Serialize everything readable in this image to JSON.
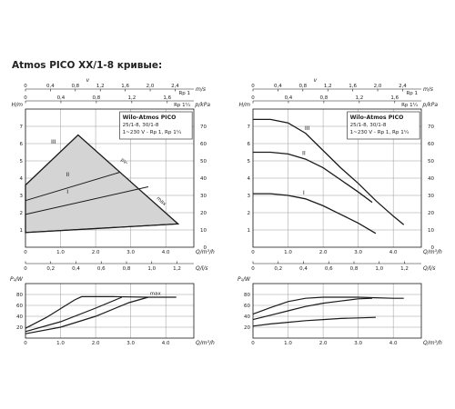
{
  "heading": "Atmos PICO XX/1-8 кривые:",
  "colors": {
    "line": "#1a1a1a",
    "grid": "#9a9a9a",
    "shade": "#d4d4d4"
  },
  "chart_data": [
    {
      "id": "left-head",
      "type": "area",
      "xlabel": "Q/m³/h",
      "ylabel": "H/m",
      "y2label": "p/kPa",
      "top_v_label": "v",
      "top_v_unit": "m/s",
      "top_rp_unit": "Rp 1",
      "top_rp2_unit": "Rp 1¼",
      "xlim": [
        0,
        4.8
      ],
      "ylim": [
        0,
        8
      ],
      "x_ticks": [
        "0",
        "1.0",
        "2.0",
        "3.0",
        "4.0"
      ],
      "y_ticks": [
        "1",
        "2",
        "3",
        "4",
        "5",
        "6",
        "7"
      ],
      "y2_ticks": [
        "0",
        "10",
        "20",
        "30",
        "40",
        "50",
        "60",
        "70"
      ],
      "q_ls_ticks": [
        "0",
        "0,2",
        "0,4",
        "0,6",
        "0,8",
        "1,0",
        "1,2"
      ],
      "q_ls_unit": "Q/l/s",
      "v_ticks": [
        "0",
        "0,4",
        "0,8",
        "1,2",
        "1,6",
        "2,0",
        "2,4"
      ],
      "rp_ticks": [
        "0",
        "0,4",
        "0,8",
        "1,2",
        "1,6"
      ],
      "legend": {
        "title": "Wilo-Atmos PICO",
        "line1": "25/1-8, 30/1-8",
        "line2": "1~230 V - Rp 1, Rp 1¼"
      },
      "curve_labels": [
        "I",
        "II",
        "III"
      ],
      "diag_labels": [
        "pv-",
        "pc",
        "max"
      ],
      "envelope": [
        [
          0,
          3.6
        ],
        [
          1.5,
          6.5
        ],
        [
          4.35,
          1.35
        ],
        [
          0,
          0.85
        ]
      ],
      "series": [
        {
          "name": "I",
          "x": [
            0,
            3.5
          ],
          "y": [
            1.9,
            3.5
          ]
        },
        {
          "name": "II",
          "x": [
            0,
            2.7
          ],
          "y": [
            2.7,
            4.35
          ]
        },
        {
          "name": "min",
          "x": [
            0,
            4.35
          ],
          "y": [
            0.85,
            1.35
          ]
        }
      ]
    },
    {
      "id": "left-power",
      "type": "line",
      "xlabel": "Q/m³/h",
      "ylabel": "P₁/W",
      "xlim": [
        0,
        4.8
      ],
      "ylim": [
        0,
        100
      ],
      "x_ticks": [
        "0",
        "1.0",
        "2.0",
        "3.0",
        "4.0"
      ],
      "y_ticks": [
        "20",
        "40",
        "60",
        "80"
      ],
      "annotation": "max",
      "series": [
        {
          "name": "max",
          "x": [
            0,
            0.6,
            1.4,
            1.6,
            2.5,
            3.5,
            4.3
          ],
          "y": [
            18,
            38,
            70,
            76,
            76,
            75,
            75
          ]
        },
        {
          "name": "II",
          "x": [
            0,
            1.0,
            2.0,
            2.75
          ],
          "y": [
            12,
            30,
            55,
            75
          ]
        },
        {
          "name": "I",
          "x": [
            0,
            1.0,
            2.0,
            2.95,
            3.5
          ],
          "y": [
            8,
            20,
            40,
            65,
            75
          ]
        }
      ]
    },
    {
      "id": "right-head",
      "type": "line",
      "xlabel": "Q/m³/h",
      "ylabel": "H/m",
      "y2label": "p/kPa",
      "top_v_label": "v",
      "top_v_unit": "m/s",
      "top_rp_unit": "Rp 1",
      "top_rp2_unit": "Rp 1¼",
      "xlim": [
        0,
        4.8
      ],
      "ylim": [
        0,
        8
      ],
      "x_ticks": [
        "0",
        "1.0",
        "2.0",
        "3.0",
        "4.0"
      ],
      "y_ticks": [
        "1",
        "2",
        "3",
        "4",
        "5",
        "6",
        "7"
      ],
      "y2_ticks": [
        "0",
        "10",
        "20",
        "30",
        "40",
        "50",
        "60",
        "70"
      ],
      "q_ls_ticks": [
        "0",
        "0,2",
        "0,4",
        "0,6",
        "0,8",
        "1,0",
        "1,2"
      ],
      "q_ls_unit": "Q/l/s",
      "v_ticks": [
        "0",
        "0,4",
        "0,8",
        "1,2",
        "1,6",
        "2,0",
        "2,4"
      ],
      "rp_ticks": [
        "0",
        "0,4",
        "0,8",
        "1,2",
        "1,6"
      ],
      "legend": {
        "title": "Wilo-Atmos PICO",
        "line1": "25/1-8, 30/1-8",
        "line2": "1~230 V - Rp 1, Rp 1¼"
      },
      "curve_labels": [
        "I",
        "II",
        "III"
      ],
      "series": [
        {
          "name": "III",
          "x": [
            0,
            0.5,
            1.0,
            1.5,
            2.0,
            2.5,
            3.0,
            3.5,
            4.0,
            4.3
          ],
          "y": [
            7.4,
            7.4,
            7.2,
            6.6,
            5.6,
            4.6,
            3.7,
            2.7,
            1.8,
            1.3
          ]
        },
        {
          "name": "II",
          "x": [
            0,
            0.5,
            1.0,
            1.5,
            2.0,
            2.5,
            3.0,
            3.4
          ],
          "y": [
            5.5,
            5.5,
            5.4,
            5.1,
            4.6,
            3.9,
            3.2,
            2.6
          ]
        },
        {
          "name": "I",
          "x": [
            0,
            0.5,
            1.0,
            1.5,
            2.0,
            2.5,
            3.0,
            3.5
          ],
          "y": [
            3.1,
            3.1,
            3.0,
            2.8,
            2.4,
            1.9,
            1.4,
            0.8
          ]
        }
      ]
    },
    {
      "id": "right-power",
      "type": "line",
      "xlabel": "Q/m³/h",
      "ylabel": "P₁/W",
      "xlim": [
        0,
        4.8
      ],
      "ylim": [
        0,
        100
      ],
      "x_ticks": [
        "0",
        "1.0",
        "2.0",
        "3.0",
        "4.0"
      ],
      "y_ticks": [
        "20",
        "40",
        "60",
        "80"
      ],
      "series": [
        {
          "name": "III",
          "x": [
            0,
            0.5,
            1.0,
            1.5,
            2.0,
            2.5,
            3.0,
            3.5,
            4.0,
            4.3
          ],
          "y": [
            44,
            56,
            67,
            73,
            75,
            75,
            75,
            74,
            73,
            73
          ]
        },
        {
          "name": "II",
          "x": [
            0,
            0.5,
            1.0,
            1.5,
            2.0,
            2.5,
            3.0,
            3.4
          ],
          "y": [
            34,
            42,
            50,
            58,
            64,
            68,
            72,
            73
          ]
        },
        {
          "name": "I",
          "x": [
            0,
            0.5,
            1.0,
            1.5,
            2.0,
            2.5,
            3.0,
            3.5
          ],
          "y": [
            22,
            26,
            29,
            32,
            34,
            36,
            37,
            38
          ]
        }
      ]
    }
  ]
}
